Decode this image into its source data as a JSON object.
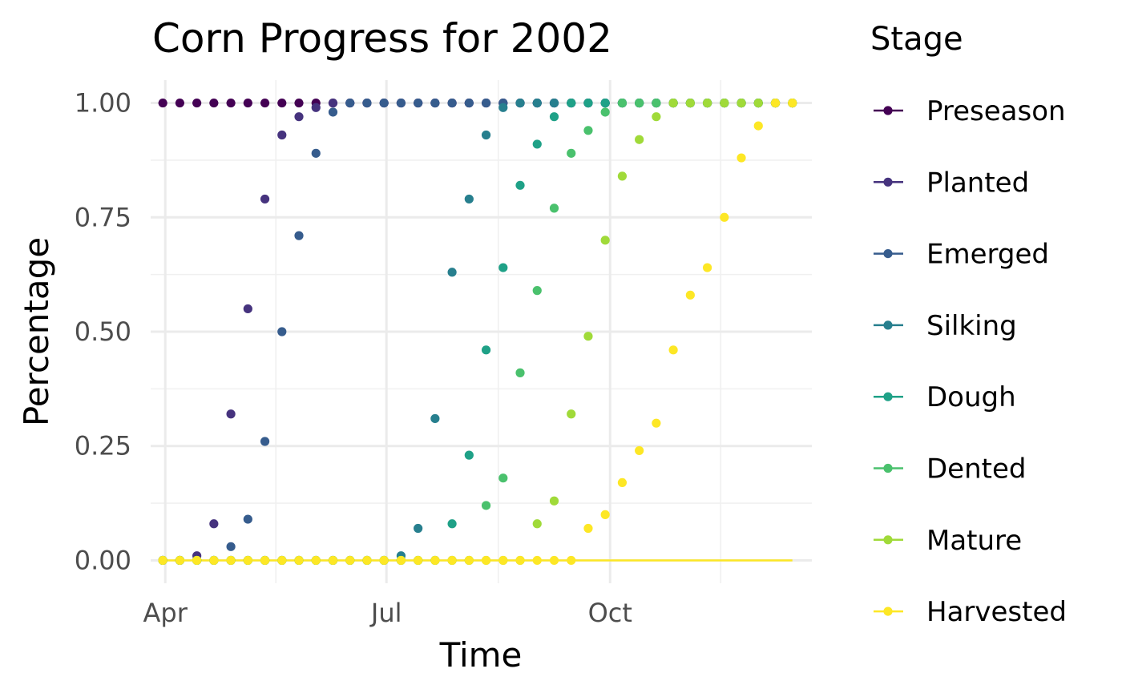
{
  "chart_data": {
    "type": "scatter",
    "title": "Corn Progress for 2002",
    "xlabel": "Time",
    "ylabel": "Percentage",
    "legend_title": "Stage",
    "legend_position": "right",
    "grid": true,
    "x_range": [
      "2002-03-26",
      "2002-12-23"
    ],
    "ylim": [
      -0.05,
      1.05
    ],
    "x_ticks": [
      {
        "date": "2002-04-01",
        "label": "Apr"
      },
      {
        "date": "2002-07-01",
        "label": "Jul"
      },
      {
        "date": "2002-10-01",
        "label": "Oct"
      }
    ],
    "y_ticks": [
      {
        "value": 0,
        "label": "0.00"
      },
      {
        "value": 0.25,
        "label": "0.25"
      },
      {
        "value": 0.5,
        "label": "0.50"
      },
      {
        "value": 0.75,
        "label": "0.75"
      },
      {
        "value": 1,
        "label": "1.00"
      }
    ],
    "x_dates": [
      "2002-03-31",
      "2002-04-07",
      "2002-04-14",
      "2002-04-21",
      "2002-04-28",
      "2002-05-05",
      "2002-05-12",
      "2002-05-19",
      "2002-05-26",
      "2002-06-02",
      "2002-06-09",
      "2002-06-16",
      "2002-06-23",
      "2002-06-30",
      "2002-07-07",
      "2002-07-14",
      "2002-07-21",
      "2002-07-28",
      "2002-08-04",
      "2002-08-11",
      "2002-08-18",
      "2002-08-25",
      "2002-09-01",
      "2002-09-08",
      "2002-09-15",
      "2002-09-22",
      "2002-09-29",
      "2002-10-06",
      "2002-10-13",
      "2002-10-20",
      "2002-10-27",
      "2002-11-03",
      "2002-11-10",
      "2002-11-17",
      "2002-11-24",
      "2002-12-01",
      "2002-12-08",
      "2002-12-15"
    ],
    "series": [
      {
        "name": "Preseason",
        "color": "#440154",
        "values": [
          1,
          1,
          1,
          1,
          1,
          1,
          1,
          1,
          1,
          1,
          1,
          1,
          1,
          1,
          1,
          1,
          1,
          1,
          1,
          1,
          1,
          1,
          1,
          1,
          1,
          1,
          1,
          1,
          1,
          1,
          1,
          1,
          1,
          1,
          1,
          1,
          1,
          1
        ]
      },
      {
        "name": "Planted",
        "color": "#46337e",
        "values": [
          0,
          0,
          0.01,
          0.08,
          0.32,
          0.55,
          0.79,
          0.93,
          0.97,
          0.99,
          1,
          1,
          1,
          1,
          1,
          1,
          1,
          1,
          1,
          1,
          1,
          1,
          1,
          1,
          1,
          1,
          1,
          1,
          1,
          1,
          1,
          1,
          1,
          1,
          1,
          1,
          1,
          1
        ]
      },
      {
        "name": "Emerged",
        "color": "#365c8d",
        "values": [
          0,
          0,
          0,
          0,
          0.03,
          0.09,
          0.26,
          0.5,
          0.71,
          0.89,
          0.98,
          1,
          1,
          1,
          1,
          1,
          1,
          1,
          1,
          1,
          1,
          1,
          1,
          1,
          1,
          1,
          1,
          1,
          1,
          1,
          1,
          1,
          1,
          1,
          1,
          1,
          1,
          1
        ]
      },
      {
        "name": "Silking",
        "color": "#277f8e",
        "values": [
          0,
          0,
          0,
          0,
          0,
          0,
          0,
          0,
          0,
          0,
          0,
          0,
          0,
          0,
          0.01,
          0.07,
          0.31,
          0.63,
          0.79,
          0.93,
          0.99,
          1,
          1,
          1,
          1,
          1,
          1,
          1,
          1,
          1,
          1,
          1,
          1,
          1,
          1,
          1,
          1,
          1
        ]
      },
      {
        "name": "Dough",
        "color": "#1fa187",
        "values": [
          0,
          0,
          0,
          0,
          0,
          0,
          0,
          0,
          0,
          0,
          0,
          0,
          0,
          0,
          0,
          0,
          0,
          0.08,
          0.23,
          0.46,
          0.64,
          0.82,
          0.91,
          0.97,
          1,
          1,
          1,
          1,
          1,
          1,
          1,
          1,
          1,
          1,
          1,
          1,
          1,
          1
        ]
      },
      {
        "name": "Dented",
        "color": "#4ac16d",
        "values": [
          0,
          0,
          0,
          0,
          0,
          0,
          0,
          0,
          0,
          0,
          0,
          0,
          0,
          0,
          0,
          0,
          0,
          0,
          0,
          0.12,
          0.18,
          0.41,
          0.59,
          0.77,
          0.89,
          0.94,
          0.98,
          1,
          1,
          1,
          1,
          1,
          1,
          1,
          1,
          1,
          1,
          1
        ]
      },
      {
        "name": "Mature",
        "color": "#a0da39",
        "values": [
          0,
          0,
          0,
          0,
          0,
          0,
          0,
          0,
          0,
          0,
          0,
          0,
          0,
          0,
          0,
          0,
          0,
          0,
          0,
          0,
          0,
          0,
          0.08,
          0.13,
          0.32,
          0.49,
          0.7,
          0.84,
          0.92,
          0.97,
          1,
          1,
          1,
          1,
          1,
          1,
          1,
          1
        ]
      },
      {
        "name": "Harvested",
        "color": "#fde725",
        "values": [
          0,
          0,
          0,
          0,
          0,
          0,
          0,
          0,
          0,
          0,
          0,
          0,
          0,
          0,
          0,
          0,
          0,
          0,
          0,
          0,
          0,
          0,
          0,
          0,
          0,
          0.07,
          0.1,
          0.17,
          0.24,
          0.3,
          0.46,
          0.58,
          0.64,
          0.75,
          0.88,
          0.95,
          1,
          1
        ]
      }
    ]
  }
}
